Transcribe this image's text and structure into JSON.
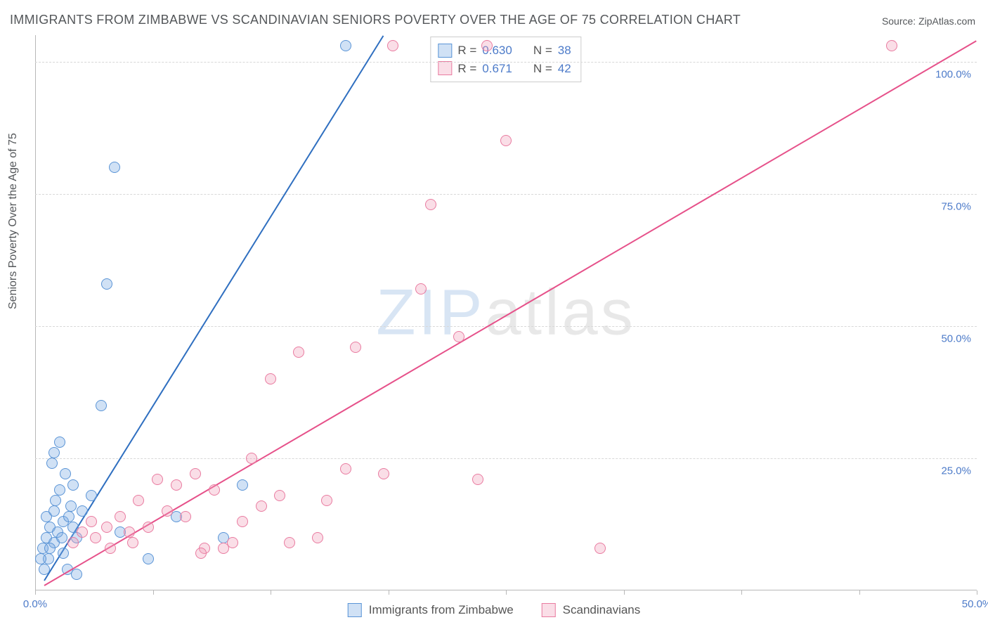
{
  "title": "IMMIGRANTS FROM ZIMBABWE VS SCANDINAVIAN SENIORS POVERTY OVER THE AGE OF 75 CORRELATION CHART",
  "source": "Source: ZipAtlas.com",
  "ylabel": "Seniors Poverty Over the Age of 75",
  "watermark_a": "ZIP",
  "watermark_b": "atlas",
  "chart": {
    "type": "scatter",
    "xlim": [
      0,
      50
    ],
    "ylim": [
      0,
      105
    ],
    "x_ticks": [
      0,
      6.25,
      12.5,
      18.75,
      25,
      31.25,
      37.5,
      43.75,
      50
    ],
    "x_tick_labels": {
      "0": "0.0%",
      "50": "50.0%"
    },
    "y_ticks": [
      25,
      50,
      75,
      100
    ],
    "y_tick_labels": {
      "25": "25.0%",
      "50": "50.0%",
      "75": "75.0%",
      "100": "100.0%"
    },
    "grid_color": "#d8d8d8",
    "background_color": "#ffffff",
    "axis_color": "#b8b8b8",
    "tick_label_color": "#4d7bc9",
    "marker_radius": 8,
    "marker_border_width": 1.2,
    "line_width": 2,
    "series": [
      {
        "name": "Immigrants from Zimbabwe",
        "fill": "rgba(120,170,225,0.35)",
        "stroke": "#5a94d6",
        "line_color": "#2f6fc0",
        "R": "0.630",
        "N": "38",
        "trend": {
          "x1": 0.5,
          "y1": 2,
          "x2": 18.5,
          "y2": 105
        },
        "points": [
          [
            0.4,
            8
          ],
          [
            0.6,
            10
          ],
          [
            0.8,
            12
          ],
          [
            1.0,
            9
          ],
          [
            1.0,
            15
          ],
          [
            1.2,
            11
          ],
          [
            1.3,
            19
          ],
          [
            1.5,
            13
          ],
          [
            1.5,
            7
          ],
          [
            1.8,
            14
          ],
          [
            2.0,
            20
          ],
          [
            2.0,
            12
          ],
          [
            2.2,
            10
          ],
          [
            0.7,
            6
          ],
          [
            1.1,
            17
          ],
          [
            1.6,
            22
          ],
          [
            1.0,
            26
          ],
          [
            1.3,
            28
          ],
          [
            0.9,
            24
          ],
          [
            3.5,
            35
          ],
          [
            4.2,
            80
          ],
          [
            16.5,
            103
          ],
          [
            3.8,
            58
          ],
          [
            2.5,
            15
          ],
          [
            3.0,
            18
          ],
          [
            4.5,
            11
          ],
          [
            6.0,
            6
          ],
          [
            1.7,
            4
          ],
          [
            11.0,
            20
          ],
          [
            10.0,
            10
          ],
          [
            7.5,
            14
          ],
          [
            2.2,
            3
          ],
          [
            0.5,
            4
          ],
          [
            0.3,
            6
          ],
          [
            0.8,
            8
          ],
          [
            1.4,
            10
          ],
          [
            1.9,
            16
          ],
          [
            0.6,
            14
          ]
        ]
      },
      {
        "name": "Scandinavians",
        "fill": "rgba(240,160,185,0.35)",
        "stroke": "#e97ba0",
        "line_color": "#e6518a",
        "R": "0.671",
        "N": "42",
        "trend": {
          "x1": 0.5,
          "y1": 1,
          "x2": 50,
          "y2": 104
        },
        "points": [
          [
            2.0,
            9
          ],
          [
            2.5,
            11
          ],
          [
            3.0,
            13
          ],
          [
            3.2,
            10
          ],
          [
            3.8,
            12
          ],
          [
            4.5,
            14
          ],
          [
            5.0,
            11
          ],
          [
            5.5,
            17
          ],
          [
            6.0,
            12
          ],
          [
            6.5,
            21
          ],
          [
            7.0,
            15
          ],
          [
            7.5,
            20
          ],
          [
            8.0,
            14
          ],
          [
            8.5,
            22
          ],
          [
            9.0,
            8
          ],
          [
            9.5,
            19
          ],
          [
            10.0,
            8
          ],
          [
            10.5,
            9
          ],
          [
            11.0,
            13
          ],
          [
            11.5,
            25
          ],
          [
            12.0,
            16
          ],
          [
            12.5,
            40
          ],
          [
            13.0,
            18
          ],
          [
            14.0,
            45
          ],
          [
            15.0,
            10
          ],
          [
            15.5,
            17
          ],
          [
            16.5,
            23
          ],
          [
            17.0,
            46
          ],
          [
            18.5,
            22
          ],
          [
            19.0,
            103
          ],
          [
            20.5,
            57
          ],
          [
            21.0,
            73
          ],
          [
            22.5,
            48
          ],
          [
            23.5,
            21
          ],
          [
            25.0,
            85
          ],
          [
            30.0,
            8
          ],
          [
            24.0,
            103
          ],
          [
            45.5,
            103
          ],
          [
            4.0,
            8
          ],
          [
            5.2,
            9
          ],
          [
            8.8,
            7
          ],
          [
            13.5,
            9
          ]
        ]
      }
    ]
  },
  "legend": {
    "R_label": "R =",
    "N_label": "N ="
  },
  "bottom_legend": {
    "item1": "Immigrants from Zimbabwe",
    "item2": "Scandinavians"
  }
}
